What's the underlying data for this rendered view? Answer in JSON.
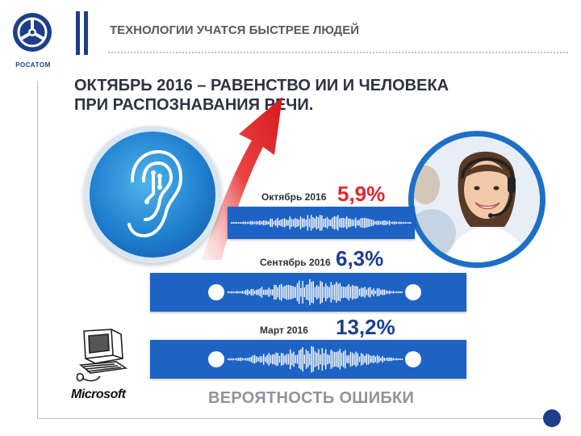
{
  "brand": {
    "name": "РОСАТОМ",
    "logo_icon": "rosatom-atom-logo-icon"
  },
  "header": {
    "title": "ТЕХНОЛОГИИ УЧАТСЯ БЫСТРЕЕ ЛЮДЕЙ"
  },
  "headline": {
    "line1": "ОКТЯБРЬ 2016 – РАВЕНСТВО ИИ И ЧЕЛОВЕКА",
    "line2": "ПРИ РАСПОЗНАВАНИЯ РЕЧИ."
  },
  "rows": [
    {
      "label": "Октябрь 2016",
      "value": "5,9%",
      "color": "#e3262c"
    },
    {
      "label": "Сентябрь 2016",
      "value": "6,3%",
      "color": "#1c3f8c"
    },
    {
      "label": "Март 2016",
      "value": "13,2%",
      "color": "#1c3f8c"
    }
  ],
  "icons": {
    "ear": "ear-icon",
    "arrow": "red-arrow-icon",
    "person": "operator-headset-photo",
    "computer": "old-computer-icon"
  },
  "colors": {
    "accent_red": "#e3262c",
    "brand_blue": "#1c3f8c",
    "band_blue": "#1e63c4",
    "caption_gray": "#8e949c"
  },
  "microsoft": {
    "label": "Microsoft"
  },
  "caption": "ВЕРОЯТНОСТЬ ОШИБКИ"
}
